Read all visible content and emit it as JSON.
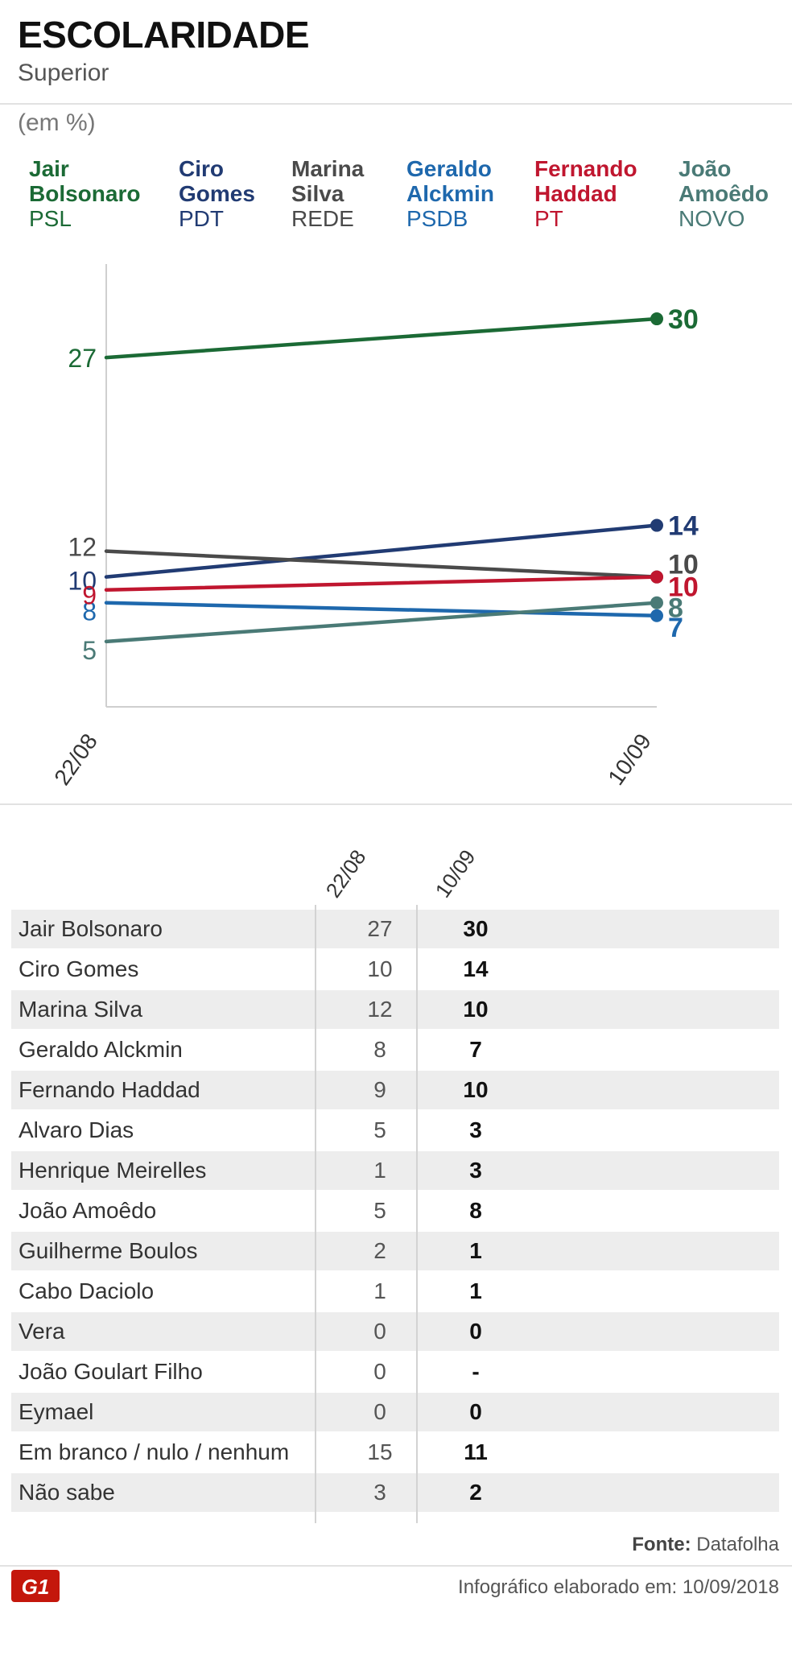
{
  "header": {
    "title": "ESCOLARIDADE",
    "subtitle": "Superior",
    "unit": "(em %)"
  },
  "legend": [
    {
      "name_line1": "Jair",
      "name_line2": "Bolsonaro",
      "party": "PSL",
      "color": "#1b6a35"
    },
    {
      "name_line1": "Ciro",
      "name_line2": "Gomes",
      "party": "PDT",
      "color": "#213b73"
    },
    {
      "name_line1": "Marina",
      "name_line2": "Silva",
      "party": "REDE",
      "color": "#4a4a4a"
    },
    {
      "name_line1": "Geraldo",
      "name_line2": "Alckmin",
      "party": "PSDB",
      "color": "#1e68ad"
    },
    {
      "name_line1": "Fernando",
      "name_line2": "Haddad",
      "party": "PT",
      "color": "#c0162f"
    },
    {
      "name_line1": "João",
      "name_line2": "Amoêdo",
      "party": "NOVO",
      "color": "#4a7a76"
    }
  ],
  "chart_data": {
    "type": "line",
    "title": "ESCOLARIDADE",
    "subtitle": "Superior",
    "ylabel": "(em %)",
    "x": [
      "22/08",
      "10/09"
    ],
    "ylim": [
      0,
      31
    ],
    "grid": false,
    "legend_position": "top",
    "series": [
      {
        "name": "Jair Bolsonaro",
        "values": [
          27,
          30
        ],
        "color": "#1b6a35"
      },
      {
        "name": "Ciro Gomes",
        "values": [
          10,
          14
        ],
        "color": "#213b73"
      },
      {
        "name": "Marina Silva",
        "values": [
          12,
          10
        ],
        "color": "#4a4a4a"
      },
      {
        "name": "Geraldo Alckmin",
        "values": [
          8,
          7
        ],
        "color": "#1e68ad"
      },
      {
        "name": "Fernando Haddad",
        "values": [
          9,
          10
        ],
        "color": "#c0162f"
      },
      {
        "name": "João Amoêdo",
        "values": [
          5,
          8
        ],
        "color": "#4a7a76"
      }
    ]
  },
  "table": {
    "columns": [
      "22/08",
      "10/09"
    ],
    "rows": [
      {
        "name": "Jair Bolsonaro",
        "v1": "27",
        "v2": "30"
      },
      {
        "name": "Ciro Gomes",
        "v1": "10",
        "v2": "14"
      },
      {
        "name": "Marina Silva",
        "v1": "12",
        "v2": "10"
      },
      {
        "name": "Geraldo Alckmin",
        "v1": "8",
        "v2": "7"
      },
      {
        "name": "Fernando Haddad",
        "v1": "9",
        "v2": "10"
      },
      {
        "name": "Alvaro Dias",
        "v1": "5",
        "v2": "3"
      },
      {
        "name": "Henrique Meirelles",
        "v1": "1",
        "v2": "3"
      },
      {
        "name": "João Amoêdo",
        "v1": "5",
        "v2": "8"
      },
      {
        "name": "Guilherme Boulos",
        "v1": "2",
        "v2": "1"
      },
      {
        "name": "Cabo Daciolo",
        "v1": "1",
        "v2": "1"
      },
      {
        "name": "Vera",
        "v1": "0",
        "v2": "0"
      },
      {
        "name": "João Goulart Filho",
        "v1": "0",
        "v2": "-"
      },
      {
        "name": "Eymael",
        "v1": "0",
        "v2": "0"
      },
      {
        "name": "Em branco / nulo / nenhum",
        "v1": "15",
        "v2": "11"
      },
      {
        "name": "Não sabe",
        "v1": "3",
        "v2": "2"
      }
    ]
  },
  "footer": {
    "source_label": "Fonte:",
    "source_value": "Datafolha",
    "made_label": "Infográfico elaborado em:",
    "made_date": "10/09/2018",
    "logo_text": "G1",
    "logo_color": "#c4170c"
  }
}
